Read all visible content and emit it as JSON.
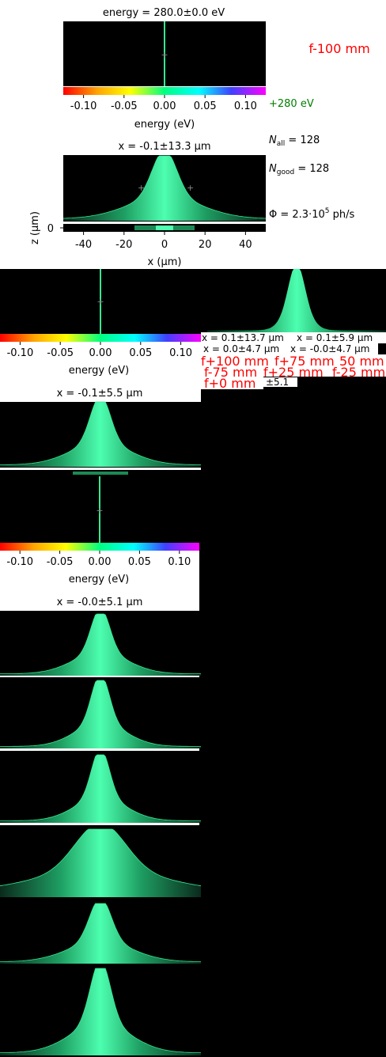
{
  "chart_data": {
    "type": "heatmap",
    "main_panel": {
      "energy_title": "energy = 280.0±0.0 eV",
      "energy_axis_label": "energy (eV)",
      "energy_ticks": [
        "-0.10",
        "-0.05",
        "0.00",
        "0.05",
        "0.10"
      ],
      "energy_tick_values": [
        -0.1,
        -0.05,
        0,
        0.05,
        0.1
      ],
      "energy_range": [
        -0.125,
        0.125
      ],
      "beam_title": "x = -0.1±13.3 μm",
      "x_axis_label": "x (μm)",
      "x_ticks": [
        "-40",
        "-20",
        "0",
        "20",
        "40"
      ],
      "x_tick_values": [
        -40,
        -20,
        0,
        20,
        40
      ],
      "x_range": [
        -50,
        50
      ],
      "z_axis_label": "z (μm)",
      "z_ticks": [
        "0"
      ],
      "focus_label": "f-100 mm",
      "energy_label": "+280 eV",
      "n_all": "128",
      "n_good": "128",
      "flux_value": "2.3·10",
      "flux_exp": "5",
      "flux_unit": "ph/s",
      "beam_sigma_um": 13.3
    },
    "overlay_titles": [
      "x = 0.1±13.7 μm",
      "x = 0.1±5.9 μm",
      "x = 0.0±4.7 μm",
      "x = -0.0±4.7 μm"
    ],
    "overlay_focus_labels": [
      "f+100 mm",
      "f+75 mm",
      "50 mm",
      "f-75 mm",
      "f+25 mm",
      "f-25 mm",
      "f+0 mm"
    ],
    "overlay_partial": "±5.1",
    "panel2": {
      "energy_ticks": [
        "-0.10",
        "-0.05",
        "0.00",
        "0.05",
        "0.10"
      ],
      "energy_tick_values": [
        -0.1,
        -0.05,
        0,
        0.05,
        0.1
      ],
      "energy_axis_label": "energy (eV)",
      "beam_title": "x = -0.1±5.5 μm"
    },
    "panel3": {
      "energy_ticks": [
        "-0.10",
        "-0.05",
        "0.00",
        "0.05",
        "0.10"
      ],
      "energy_tick_values": [
        -0.1,
        -0.05,
        0,
        0.05,
        0.1
      ],
      "energy_axis_label": "energy (eV)",
      "beam_title": "x = -0.0±5.1 μm"
    },
    "stacked_profiles_sigma_um": [
      5.1,
      4.7,
      4.7,
      13.7,
      5.9,
      5.5
    ]
  },
  "colors": {
    "beam": "#33e890",
    "focus_text": "#ff0000",
    "energy_text": "#008000"
  }
}
